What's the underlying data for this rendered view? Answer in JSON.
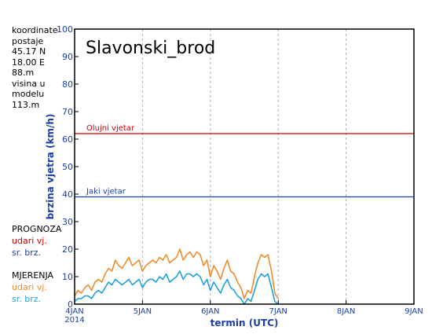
{
  "station_info": {
    "lines": [
      "koordinate",
      "postaje",
      "45.17 N",
      "18.00 E",
      "88.m",
      "visina u",
      "modelu",
      "113.m"
    ]
  },
  "legend": {
    "forecast_title": "PROGNOZA",
    "forecast_gust": "udari vj.",
    "forecast_mean": "sr. brz.",
    "measured_title": "MJERENJA",
    "measured_gust": "udari vj.",
    "measured_mean": "sr. brz."
  },
  "colors": {
    "forecast_gust": "#cc0000",
    "forecast_mean": "#1a3fa8",
    "measured_gust": "#f08a2c",
    "measured_mean": "#1ea0dc",
    "storm_line": "#cc0000",
    "strong_line": "#1a3fa8",
    "axis_label": "#1a3fa8",
    "grid": "#b0b0b0"
  },
  "chart_data": {
    "type": "line",
    "title": "Slavonski_brod",
    "xlabel": "termin (UTC)",
    "ylabel": "brzina vjetra (km/h)",
    "ylim": [
      0,
      100
    ],
    "xlim": [
      0,
      5
    ],
    "yticks": [
      0,
      10,
      20,
      30,
      40,
      50,
      60,
      70,
      80,
      90,
      100
    ],
    "xticks": [
      {
        "x": 0,
        "label": "4JAN",
        "sublabel": "2014"
      },
      {
        "x": 1,
        "label": "5JAN",
        "sublabel": ""
      },
      {
        "x": 2,
        "label": "6JAN",
        "sublabel": ""
      },
      {
        "x": 3,
        "label": "7JAN",
        "sublabel": ""
      },
      {
        "x": 4,
        "label": "8JAN",
        "sublabel": ""
      },
      {
        "x": 5,
        "label": "9JAN",
        "sublabel": ""
      }
    ],
    "grid": true,
    "thresholds": [
      {
        "label": "Olujni vjetar",
        "value": 62
      },
      {
        "label": "Jaki vjetar",
        "value": 39
      }
    ],
    "series": [
      {
        "name": "MJERENJA udari vj.",
        "x": [
          0,
          0.05,
          0.1,
          0.15,
          0.2,
          0.25,
          0.3,
          0.35,
          0.4,
          0.45,
          0.5,
          0.55,
          0.6,
          0.65,
          0.7,
          0.75,
          0.8,
          0.85,
          0.9,
          0.95,
          1.0,
          1.05,
          1.1,
          1.15,
          1.2,
          1.25,
          1.3,
          1.35,
          1.4,
          1.45,
          1.5,
          1.55,
          1.6,
          1.65,
          1.7,
          1.75,
          1.8,
          1.85,
          1.9,
          1.95,
          2.0,
          2.05,
          2.1,
          2.15,
          2.2,
          2.25,
          2.3,
          2.35,
          2.4,
          2.45,
          2.5,
          2.55,
          2.6,
          2.65,
          2.7,
          2.75,
          2.8,
          2.85,
          2.9,
          2.95,
          3.0
        ],
        "y": [
          3,
          5,
          4,
          6,
          7,
          5,
          8,
          9,
          8,
          11,
          13,
          12,
          16,
          14,
          13,
          15,
          17,
          14,
          15,
          16,
          12,
          14,
          15,
          16,
          15,
          17,
          16,
          18,
          15,
          16,
          17,
          20,
          16,
          18,
          19,
          17,
          19,
          18,
          14,
          16,
          10,
          14,
          12,
          9,
          13,
          16,
          12,
          11,
          8,
          6,
          2,
          5,
          4,
          10,
          15,
          18,
          17,
          18,
          12,
          4,
          2
        ]
      },
      {
        "name": "MJERENJA sr. brz.",
        "x": [
          0,
          0.05,
          0.1,
          0.15,
          0.2,
          0.25,
          0.3,
          0.35,
          0.4,
          0.45,
          0.5,
          0.55,
          0.6,
          0.65,
          0.7,
          0.75,
          0.8,
          0.85,
          0.9,
          0.95,
          1.0,
          1.05,
          1.1,
          1.15,
          1.2,
          1.25,
          1.3,
          1.35,
          1.4,
          1.45,
          1.5,
          1.55,
          1.6,
          1.65,
          1.7,
          1.75,
          1.8,
          1.85,
          1.9,
          1.95,
          2.0,
          2.05,
          2.1,
          2.15,
          2.2,
          2.25,
          2.3,
          2.35,
          2.4,
          2.45,
          2.5,
          2.55,
          2.6,
          2.65,
          2.7,
          2.75,
          2.8,
          2.85,
          2.9,
          2.95,
          3.0
        ],
        "y": [
          1,
          2,
          2,
          3,
          3,
          2,
          4,
          5,
          4,
          6,
          8,
          7,
          9,
          8,
          7,
          8,
          9,
          7,
          8,
          9,
          6,
          8,
          9,
          9,
          8,
          10,
          9,
          11,
          8,
          9,
          10,
          12,
          9,
          11,
          11,
          10,
          11,
          10,
          7,
          9,
          5,
          8,
          6,
          4,
          7,
          9,
          6,
          5,
          3,
          2,
          0,
          2,
          1,
          5,
          9,
          11,
          10,
          11,
          6,
          1,
          0
        ]
      }
    ]
  }
}
